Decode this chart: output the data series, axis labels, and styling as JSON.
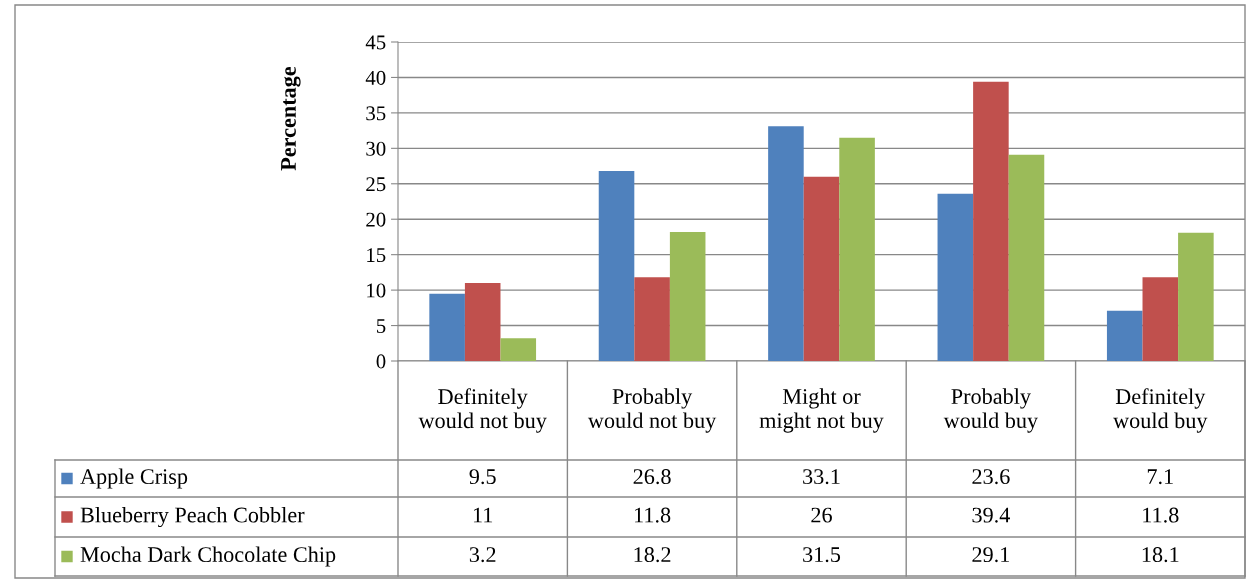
{
  "chart_data": {
    "type": "bar",
    "ylabel": "Percentage",
    "categories": [
      "Definitely would not buy",
      "Probably would not buy",
      "Might or might not buy",
      "Probably would buy",
      "Definitely would buy"
    ],
    "series": [
      {
        "name": "Apple Crisp",
        "color": "#4f81bd",
        "values": [
          9.5,
          26.8,
          33.1,
          23.6,
          7.1
        ]
      },
      {
        "name": "Blueberry Peach Cobbler",
        "color": "#c0504d",
        "values": [
          11,
          11.8,
          26,
          39.4,
          11.8
        ]
      },
      {
        "name": "Mocha Dark Chocolate Chip",
        "color": "#9bbb59",
        "values": [
          3.2,
          18.2,
          31.5,
          29.1,
          18.1
        ]
      }
    ],
    "ylim": [
      0,
      45
    ],
    "yticks": [
      0,
      5,
      10,
      15,
      20,
      25,
      30,
      35,
      40,
      45
    ],
    "grid": "y",
    "legend": "bottom",
    "data_labels": true
  }
}
